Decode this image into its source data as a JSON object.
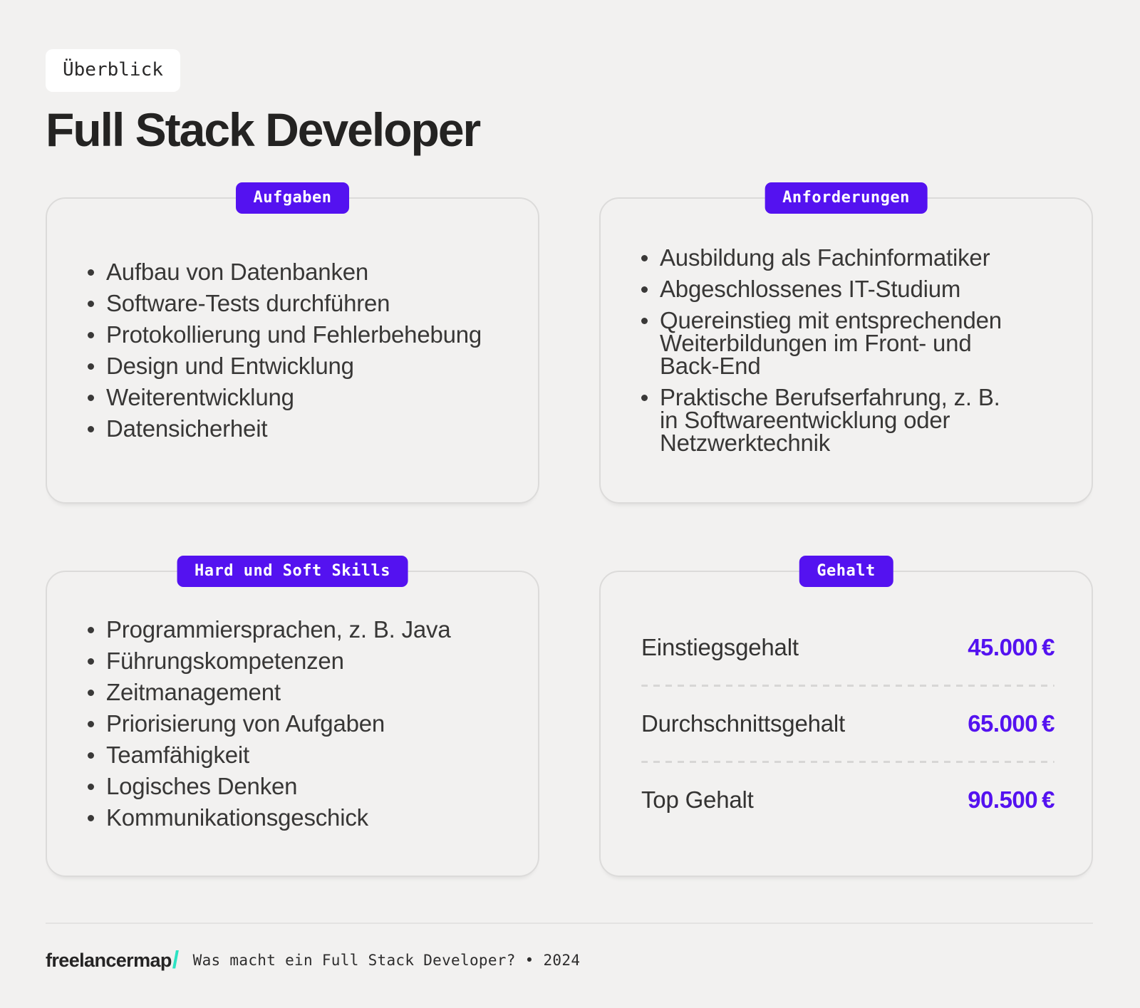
{
  "page": {
    "overline_badge": "Überblick",
    "title": "Full Stack Developer"
  },
  "colors": {
    "background": "#f2f1f0",
    "accent_purple": "#5412f0",
    "mint": "#2de3c3",
    "card_border": "#dcdbda",
    "text_dark": "#383736"
  },
  "cards": {
    "aufgaben": {
      "badge": "Aufgaben",
      "items": [
        "Aufbau von Datenbanken",
        "Software-Tests durchführen",
        "Protokollierung und Fehlerbehebung",
        "Design und Entwicklung",
        "Weiterentwicklung",
        "Datensicherheit"
      ]
    },
    "anforderungen": {
      "badge": "Anforderungen",
      "items": [
        "Ausbildung als Fachinformatiker",
        "Abgeschlossenes IT-Studium",
        "Quereinstieg mit entsprechenden\nWeiterbildungen im Front- und\nBack-End",
        "Praktische Berufserfahrung, z. B.\nin Softwareentwicklung oder\nNetzwerktechnik"
      ]
    },
    "skills": {
      "badge": "Hard und Soft Skills",
      "items": [
        "Programmiersprachen, z. B. Java",
        "Führungskompetenzen",
        "Zeitmanagement",
        "Priorisierung von Aufgaben",
        "Teamfähigkeit",
        "Logisches Denken",
        "Kommunikationsgeschick"
      ]
    },
    "gehalt": {
      "badge": "Gehalt",
      "rows": [
        {
          "label": "Einstiegsgehalt",
          "value": "45.000",
          "currency": "€"
        },
        {
          "label": "Durchschnittsgehalt",
          "value": "65.000",
          "currency": "€"
        },
        {
          "label": "Top Gehalt",
          "value": "90.500",
          "currency": "€"
        }
      ]
    }
  },
  "footer": {
    "logo": "freelancermap",
    "logo_slash": "/",
    "caption": "Was macht ein Full Stack Developer? • 2024"
  }
}
